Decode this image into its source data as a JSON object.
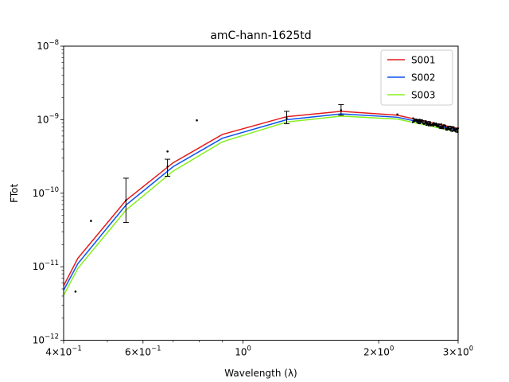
{
  "chart_data": {
    "type": "line",
    "title": "amC-hann-1625td",
    "xlabel": "Wavelength (λ)",
    "ylabel": "FTot",
    "xscale": "log",
    "yscale": "log",
    "xlim": [
      0.4,
      3.0
    ],
    "ylim": [
      1e-12,
      1e-08
    ],
    "grid": false,
    "legend_position": "top-right",
    "x_ticks": [
      {
        "value": 0.4,
        "base": "4×10",
        "exp": "−1"
      },
      {
        "value": 0.6,
        "base": "6×10",
        "exp": "−1"
      },
      {
        "value": 1.0,
        "base": "10",
        "exp": "0"
      },
      {
        "value": 2.0,
        "base": "2×10",
        "exp": "0"
      },
      {
        "value": 3.0,
        "base": "3×10",
        "exp": "0"
      }
    ],
    "y_ticks": [
      {
        "value": 1e-12,
        "base": "10",
        "exp": "−12"
      },
      {
        "value": 1e-11,
        "base": "10",
        "exp": "−11"
      },
      {
        "value": 1e-10,
        "base": "10",
        "exp": "−10"
      },
      {
        "value": 1e-09,
        "base": "10",
        "exp": "−9"
      },
      {
        "value": 1e-08,
        "base": "10",
        "exp": "−8"
      }
    ],
    "x": [
      0.4,
      0.43,
      0.55,
      0.7,
      0.9,
      1.25,
      1.65,
      2.2,
      3.0
    ],
    "series": [
      {
        "name": "S001",
        "color": "#e41a1c",
        "values": [
          5.5e-12,
          1.3e-11,
          8e-11,
          2.6e-10,
          6.3e-10,
          1.1e-09,
          1.3e-09,
          1.15e-09,
          7.6e-10
        ]
      },
      {
        "name": "S002",
        "color": "#0c52f0",
        "values": [
          4.8e-12,
          1.1e-11,
          6.9e-11,
          2.3e-10,
          5.6e-10,
          1e-09,
          1.2e-09,
          1.08e-09,
          7.2e-10
        ]
      },
      {
        "name": "S003",
        "color": "#85f01e",
        "values": [
          4.1e-12,
          9.5e-12,
          5.9e-11,
          2e-10,
          5e-10,
          9.3e-10,
          1.12e-09,
          1.02e-09,
          6.8e-10
        ]
      }
    ],
    "observations": [
      {
        "x": 0.425,
        "y": 4.6e-12
      },
      {
        "x": 0.46,
        "y": 4.2e-11
      },
      {
        "x": 0.68,
        "y": 3.7e-10
      },
      {
        "x": 0.79,
        "y": 9.8e-10
      },
      {
        "x": 2.2,
        "y": 1.18e-09
      }
    ],
    "error_bars": [
      {
        "x": 0.55,
        "y": 8e-11,
        "low": 4e-11,
        "high": 1.6e-10
      },
      {
        "x": 0.68,
        "y": 2.3e-10,
        "low": 1.7e-10,
        "high": 2.9e-10
      },
      {
        "x": 1.25,
        "y": 1.05e-09,
        "low": 8.8e-10,
        "high": 1.3e-09
      },
      {
        "x": 1.65,
        "y": 1.35e-09,
        "low": 1.15e-09,
        "high": 1.6e-09
      }
    ],
    "dense_region": {
      "x_start": 2.38,
      "x_end": 3.0,
      "y_start": 9.9e-10,
      "y_end": 7.2e-10
    }
  }
}
